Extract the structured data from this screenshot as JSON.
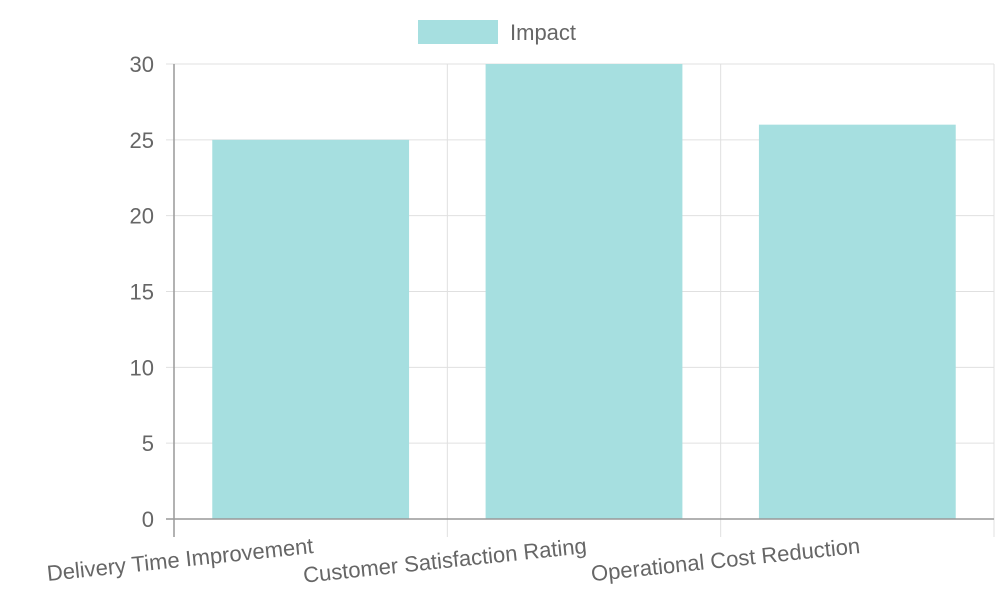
{
  "chart_data": {
    "type": "bar",
    "categories": [
      "Delivery Time Improvement",
      "Customer Satisfaction Rating",
      "Operational Cost Reduction"
    ],
    "series": [
      {
        "name": "Impact",
        "values": [
          25,
          30,
          26
        ]
      }
    ],
    "title": "",
    "xlabel": "",
    "ylabel": "",
    "ylim": [
      0,
      30
    ],
    "yticks": [
      0,
      5,
      10,
      15,
      20,
      25,
      30
    ],
    "grid": true,
    "legend": "top-center",
    "colors": {
      "bar_fill": "#a6dfe0",
      "grid": "#e0e0e0",
      "axis": "#999999",
      "text": "#666666"
    }
  }
}
